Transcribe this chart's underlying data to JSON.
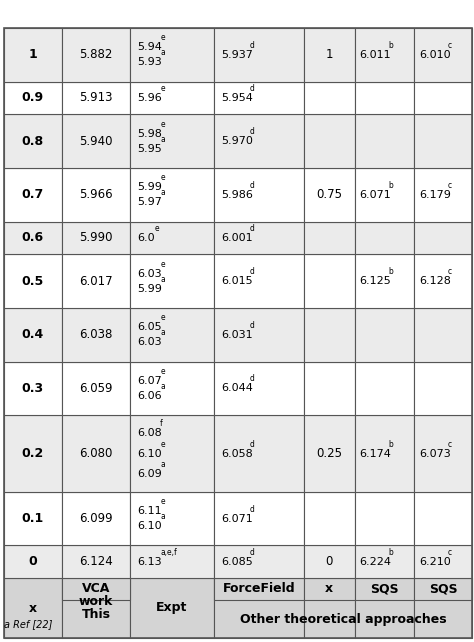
{
  "footer": "a Ref [22]",
  "rows": [
    {
      "x": "0",
      "vca": "6.124",
      "expt": [
        [
          "6.13",
          "a,e,f"
        ]
      ],
      "ff": [
        "6.085",
        "d"
      ],
      "sx": "0",
      "sqs1": [
        "6.224",
        "b"
      ],
      "sqs2": [
        "6.210",
        "c"
      ],
      "bg": "#ebebeb"
    },
    {
      "x": "0.1",
      "vca": "6.099",
      "expt": [
        [
          "6.10",
          "a"
        ],
        [
          "6.11",
          "e"
        ]
      ],
      "ff": [
        "6.071",
        "d"
      ],
      "sx": "",
      "sqs1": [
        "",
        ""
      ],
      "sqs2": [
        "",
        ""
      ],
      "bg": "#ffffff"
    },
    {
      "x": "0.2",
      "vca": "6.080",
      "expt": [
        [
          "6.09",
          "a"
        ],
        [
          "6.10",
          "e"
        ],
        [
          "6.08",
          "f"
        ]
      ],
      "ff": [
        "6.058",
        "d"
      ],
      "sx": "0.25",
      "sqs1": [
        "6.174",
        "b"
      ],
      "sqs2": [
        "6.073",
        "c"
      ],
      "bg": "#ebebeb"
    },
    {
      "x": "0.3",
      "vca": "6.059",
      "expt": [
        [
          "6.06",
          "a"
        ],
        [
          "6.07",
          "e"
        ]
      ],
      "ff": [
        "6.044",
        "d"
      ],
      "sx": "",
      "sqs1": [
        "",
        ""
      ],
      "sqs2": [
        "",
        ""
      ],
      "bg": "#ffffff"
    },
    {
      "x": "0.4",
      "vca": "6.038",
      "expt": [
        [
          "6.03",
          "a"
        ],
        [
          "6.05",
          "e"
        ]
      ],
      "ff": [
        "6.031",
        "d"
      ],
      "sx": "",
      "sqs1": [
        "",
        ""
      ],
      "sqs2": [
        "",
        ""
      ],
      "bg": "#ebebeb"
    },
    {
      "x": "0.5",
      "vca": "6.017",
      "expt": [
        [
          "5.99",
          "a"
        ],
        [
          "6.03",
          "e"
        ]
      ],
      "ff": [
        "6.015",
        "d"
      ],
      "sx": "",
      "sqs1": [
        "6.125",
        "b"
      ],
      "sqs2": [
        "6.128",
        "c"
      ],
      "bg": "#ffffff"
    },
    {
      "x": "0.6",
      "vca": "5.990",
      "expt": [
        [
          "6.0",
          "e"
        ]
      ],
      "ff": [
        "6.001",
        "d"
      ],
      "sx": "",
      "sqs1": [
        "",
        ""
      ],
      "sqs2": [
        "",
        ""
      ],
      "bg": "#ebebeb"
    },
    {
      "x": "0.7",
      "vca": "5.966",
      "expt": [
        [
          "5.97",
          "a"
        ],
        [
          "5.99",
          "e"
        ]
      ],
      "ff": [
        "5.986",
        "d"
      ],
      "sx": "0.75",
      "sqs1": [
        "6.071",
        "b"
      ],
      "sqs2": [
        "6.179",
        "c"
      ],
      "bg": "#ffffff"
    },
    {
      "x": "0.8",
      "vca": "5.940",
      "expt": [
        [
          "5.95",
          "a"
        ],
        [
          "5.98",
          "e"
        ]
      ],
      "ff": [
        "5.970",
        "d"
      ],
      "sx": "",
      "sqs1": [
        "",
        ""
      ],
      "sqs2": [
        "",
        ""
      ],
      "bg": "#ebebeb"
    },
    {
      "x": "0.9",
      "vca": "5.913",
      "expt": [
        [
          "5.96",
          "e"
        ]
      ],
      "ff": [
        "5.954",
        "d"
      ],
      "sx": "",
      "sqs1": [
        "",
        ""
      ],
      "sqs2": [
        "",
        ""
      ],
      "bg": "#ffffff"
    },
    {
      "x": "1",
      "vca": "5.882",
      "expt": [
        [
          "5.93",
          "a"
        ],
        [
          "5.94",
          "e"
        ]
      ],
      "ff": [
        "5.937",
        "d"
      ],
      "sx": "1",
      "sqs1": [
        "6.011",
        "b"
      ],
      "sqs2": [
        "6.010",
        "c"
      ],
      "bg": "#ebebeb"
    }
  ],
  "header_bg": "#d4d4d4",
  "border_color": "#555555",
  "fig_width": 4.74,
  "fig_height": 6.42,
  "dpi": 100
}
